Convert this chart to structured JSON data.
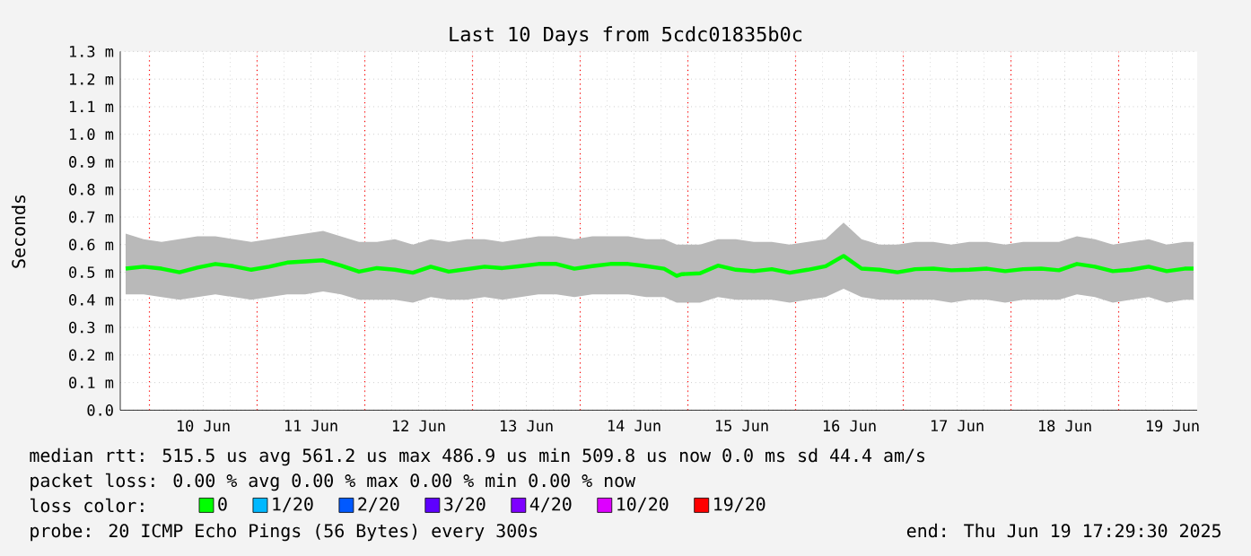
{
  "chart_data": {
    "type": "line",
    "title": "Last 10 Days from 5cdc01835b0c",
    "ylabel": "Seconds",
    "x": [
      "2025-06-09T18:42",
      "2025-06-09T22:42",
      "2025-06-10T02:42",
      "2025-06-10T06:42",
      "2025-06-10T10:42",
      "2025-06-10T14:42",
      "2025-06-10T18:42",
      "2025-06-10T22:42",
      "2025-06-11T02:42",
      "2025-06-11T06:42",
      "2025-06-11T10:42",
      "2025-06-11T14:42",
      "2025-06-11T18:42",
      "2025-06-11T22:42",
      "2025-06-12T02:42",
      "2025-06-12T06:42",
      "2025-06-12T10:42",
      "2025-06-12T14:42",
      "2025-06-12T18:42",
      "2025-06-12T22:42",
      "2025-06-13T02:42",
      "2025-06-13T06:42",
      "2025-06-13T10:42",
      "2025-06-13T14:42",
      "2025-06-13T18:42",
      "2025-06-13T22:42",
      "2025-06-14T02:42",
      "2025-06-14T06:42",
      "2025-06-14T10:42",
      "2025-06-14T14:42",
      "2025-06-14T18:42",
      "2025-06-14T21:30",
      "2025-06-14T22:42",
      "2025-06-15T02:42",
      "2025-06-15T06:42",
      "2025-06-15T10:42",
      "2025-06-15T14:42",
      "2025-06-15T18:42",
      "2025-06-15T22:42",
      "2025-06-16T02:42",
      "2025-06-16T06:42",
      "2025-06-16T10:42",
      "2025-06-16T14:42",
      "2025-06-16T18:42",
      "2025-06-16T22:42",
      "2025-06-17T02:42",
      "2025-06-17T06:42",
      "2025-06-17T10:42",
      "2025-06-17T14:42",
      "2025-06-17T18:42",
      "2025-06-17T22:42",
      "2025-06-18T02:42",
      "2025-06-18T06:42",
      "2025-06-18T10:42",
      "2025-06-18T14:42",
      "2025-06-18T18:42",
      "2025-06-18T22:42",
      "2025-06-19T02:42",
      "2025-06-19T06:42",
      "2025-06-19T10:42",
      "2025-06-19T14:42",
      "2025-06-19T16:42"
    ],
    "series": [
      {
        "name": "0",
        "color": "#00ff00",
        "values": [
          0.513,
          0.52,
          0.513,
          0.5,
          0.517,
          0.53,
          0.522,
          0.509,
          0.52,
          0.535,
          0.539,
          0.543,
          0.524,
          0.502,
          0.515,
          0.509,
          0.498,
          0.52,
          0.502,
          0.511,
          0.52,
          0.515,
          0.522,
          0.53,
          0.53,
          0.513,
          0.522,
          0.53,
          0.53,
          0.522,
          0.513,
          0.487,
          0.493,
          0.496,
          0.524,
          0.509,
          0.504,
          0.511,
          0.498,
          0.509,
          0.522,
          0.559,
          0.513,
          0.509,
          0.5,
          0.511,
          0.513,
          0.507,
          0.509,
          0.513,
          0.504,
          0.511,
          0.513,
          0.507,
          0.53,
          0.52,
          0.504,
          0.509,
          0.52,
          0.504,
          0.513,
          0.513
        ],
        "lower": [
          0.42,
          0.42,
          0.41,
          0.4,
          0.41,
          0.42,
          0.41,
          0.4,
          0.41,
          0.42,
          0.42,
          0.43,
          0.42,
          0.4,
          0.4,
          0.4,
          0.39,
          0.41,
          0.4,
          0.4,
          0.41,
          0.4,
          0.41,
          0.42,
          0.42,
          0.41,
          0.42,
          0.42,
          0.42,
          0.41,
          0.41,
          0.39,
          0.39,
          0.39,
          0.41,
          0.4,
          0.4,
          0.4,
          0.39,
          0.4,
          0.41,
          0.44,
          0.41,
          0.4,
          0.4,
          0.4,
          0.4,
          0.39,
          0.4,
          0.4,
          0.39,
          0.4,
          0.4,
          0.4,
          0.42,
          0.41,
          0.39,
          0.4,
          0.41,
          0.39,
          0.4,
          0.4
        ],
        "upper": [
          0.64,
          0.62,
          0.61,
          0.62,
          0.63,
          0.63,
          0.62,
          0.61,
          0.62,
          0.63,
          0.64,
          0.65,
          0.63,
          0.61,
          0.61,
          0.62,
          0.6,
          0.62,
          0.61,
          0.62,
          0.62,
          0.61,
          0.62,
          0.63,
          0.63,
          0.62,
          0.63,
          0.63,
          0.63,
          0.62,
          0.62,
          0.6,
          0.6,
          0.6,
          0.62,
          0.62,
          0.61,
          0.61,
          0.6,
          0.61,
          0.62,
          0.68,
          0.62,
          0.6,
          0.6,
          0.61,
          0.61,
          0.6,
          0.61,
          0.61,
          0.6,
          0.61,
          0.61,
          0.61,
          0.63,
          0.62,
          0.6,
          0.61,
          0.62,
          0.6,
          0.61,
          0.61
        ]
      },
      {
        "name": "1/20",
        "color": "#00b8ff",
        "values": [
          null,
          null,
          null,
          null,
          null,
          null,
          null,
          null,
          null,
          null,
          null,
          null,
          null,
          null,
          null,
          null,
          null,
          null,
          null,
          null,
          null,
          null,
          null,
          null,
          null,
          null,
          null,
          null,
          null,
          null,
          null,
          null,
          null,
          null,
          null,
          null,
          null,
          null,
          null,
          null,
          null,
          null,
          null,
          null,
          null,
          null,
          null,
          null,
          null,
          null,
          null,
          null,
          null,
          null,
          null,
          null,
          null,
          null,
          null,
          null,
          null,
          null
        ]
      },
      {
        "name": "2/20",
        "color": "#0059ff",
        "values": [
          null,
          null,
          null,
          null,
          null,
          null,
          null,
          null,
          null,
          null,
          null,
          null,
          null,
          null,
          null,
          null,
          null,
          null,
          null,
          null,
          null,
          null,
          null,
          null,
          null,
          null,
          null,
          null,
          null,
          null,
          null,
          null,
          null,
          null,
          null,
          null,
          null,
          null,
          null,
          null,
          null,
          null,
          null,
          null,
          null,
          null,
          null,
          null,
          null,
          null,
          null,
          null,
          null,
          null,
          null,
          null,
          null,
          null,
          null,
          null,
          null,
          null
        ]
      },
      {
        "name": "3/20",
        "color": "#5e00ff",
        "values": [
          null,
          null,
          null,
          null,
          null,
          null,
          null,
          null,
          null,
          null,
          null,
          null,
          null,
          null,
          null,
          null,
          null,
          null,
          null,
          null,
          null,
          null,
          null,
          null,
          null,
          null,
          null,
          null,
          null,
          null,
          null,
          null,
          null,
          null,
          null,
          null,
          null,
          null,
          null,
          null,
          null,
          null,
          null,
          null,
          null,
          null,
          null,
          null,
          null,
          null,
          null,
          null,
          null,
          null,
          null,
          null,
          null,
          null,
          null,
          null,
          null,
          null
        ]
      },
      {
        "name": "4/20",
        "color": "#7e00ff",
        "values": [
          null,
          null,
          null,
          null,
          null,
          null,
          null,
          null,
          null,
          null,
          null,
          null,
          null,
          null,
          null,
          null,
          null,
          null,
          null,
          null,
          null,
          null,
          null,
          null,
          null,
          null,
          null,
          null,
          null,
          null,
          null,
          null,
          null,
          null,
          null,
          null,
          null,
          null,
          null,
          null,
          null,
          null,
          null,
          null,
          null,
          null,
          null,
          null,
          null,
          null,
          null,
          null,
          null,
          null,
          null,
          null,
          null,
          null,
          null,
          null,
          null,
          null
        ]
      },
      {
        "name": "10/20",
        "color": "#dd00ff",
        "values": [
          null,
          null,
          null,
          null,
          null,
          null,
          null,
          null,
          null,
          null,
          null,
          null,
          null,
          null,
          null,
          null,
          null,
          null,
          null,
          null,
          null,
          null,
          null,
          null,
          null,
          null,
          null,
          null,
          null,
          null,
          null,
          null,
          null,
          null,
          null,
          null,
          null,
          null,
          null,
          null,
          null,
          null,
          null,
          null,
          null,
          null,
          null,
          null,
          null,
          null,
          null,
          null,
          null,
          null,
          null,
          null,
          null,
          null,
          null,
          null,
          null,
          null
        ]
      },
      {
        "name": "19/20",
        "color": "#ff0000",
        "values": [
          null,
          null,
          null,
          null,
          null,
          null,
          null,
          null,
          null,
          null,
          null,
          null,
          null,
          null,
          null,
          null,
          null,
          null,
          null,
          null,
          null,
          null,
          null,
          null,
          null,
          null,
          null,
          null,
          null,
          null,
          null,
          null,
          null,
          null,
          null,
          null,
          null,
          null,
          null,
          null,
          null,
          null,
          null,
          null,
          null,
          null,
          null,
          null,
          null,
          null,
          null,
          null,
          null,
          null,
          null,
          null,
          null,
          null,
          null,
          null,
          null,
          null
        ]
      }
    ],
    "xlim": [
      "2025-06-09T17:30",
      "2025-06-19T17:30"
    ],
    "xticks": [
      {
        "value": "2025-06-10T12:00",
        "label": "10 Jun"
      },
      {
        "value": "2025-06-11T12:00",
        "label": "11 Jun"
      },
      {
        "value": "2025-06-12T12:00",
        "label": "12 Jun"
      },
      {
        "value": "2025-06-13T12:00",
        "label": "13 Jun"
      },
      {
        "value": "2025-06-14T12:00",
        "label": "14 Jun"
      },
      {
        "value": "2025-06-15T12:00",
        "label": "15 Jun"
      },
      {
        "value": "2025-06-16T12:00",
        "label": "16 Jun"
      },
      {
        "value": "2025-06-17T12:00",
        "label": "17 Jun"
      },
      {
        "value": "2025-06-18T12:00",
        "label": "18 Jun"
      },
      {
        "value": "2025-06-19T12:00",
        "label": "19 Jun"
      }
    ],
    "ylim": [
      0,
      1.3
    ],
    "yticks": [
      {
        "value": 0,
        "label": "0.0"
      },
      {
        "value": 0.1,
        "label": "0.1 m"
      },
      {
        "value": 0.2,
        "label": "0.2 m"
      },
      {
        "value": 0.3,
        "label": "0.3 m"
      },
      {
        "value": 0.4,
        "label": "0.4 m"
      },
      {
        "value": 0.5,
        "label": "0.5 m"
      },
      {
        "value": 0.6,
        "label": "0.6 m"
      },
      {
        "value": 0.7,
        "label": "0.7 m"
      },
      {
        "value": 0.8,
        "label": "0.8 m"
      },
      {
        "value": 0.9,
        "label": "0.9 m"
      },
      {
        "value": 1.0,
        "label": "1.0 m"
      },
      {
        "value": 1.1,
        "label": "1.1 m"
      },
      {
        "value": 1.2,
        "label": "1.2 m"
      },
      {
        "value": 1.3,
        "label": "1.3 m"
      }
    ],
    "grid": true,
    "legend": "bottom",
    "ref_lines": [
      {
        "axis": "x",
        "value": "2025-06-10",
        "color": "#ff0000",
        "line_style": "dotted"
      },
      {
        "axis": "x",
        "value": "2025-06-11",
        "color": "#ff0000",
        "line_style": "dotted"
      },
      {
        "axis": "x",
        "value": "2025-06-12",
        "color": "#ff0000",
        "line_style": "dotted"
      },
      {
        "axis": "x",
        "value": "2025-06-13",
        "color": "#ff0000",
        "line_style": "dotted"
      },
      {
        "axis": "x",
        "value": "2025-06-14",
        "color": "#ff0000",
        "line_style": "dotted"
      },
      {
        "axis": "x",
        "value": "2025-06-15",
        "color": "#ff0000",
        "line_style": "dotted"
      },
      {
        "axis": "x",
        "value": "2025-06-16",
        "color": "#ff0000",
        "line_style": "dotted"
      },
      {
        "axis": "x",
        "value": "2025-06-17",
        "color": "#ff0000",
        "line_style": "dotted"
      },
      {
        "axis": "x",
        "value": "2025-06-18",
        "color": "#ff0000",
        "line_style": "dotted"
      },
      {
        "axis": "x",
        "value": "2025-06-19",
        "color": "#ff0000",
        "line_style": "dotted"
      }
    ],
    "annotations": [
      "median rtt: 515.5 us avg 561.2 us max 486.9 us min 509.8 us now 0.0 ms sd 44.4 am/s",
      "packet loss: 0.00 % avg 0.00 % max 0.00 % min 0.00 % now",
      "loss color:",
      "probe: 20 ICMP Echo Pings (56 Bytes) every 300s",
      "end: Thu Jun 19 17:29:30 2025"
    ]
  }
}
